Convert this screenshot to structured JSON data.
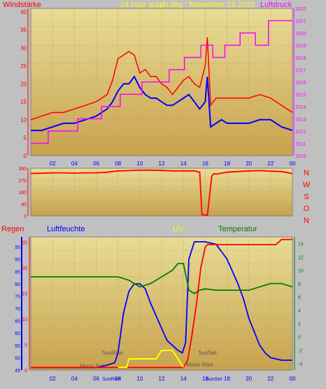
{
  "header": {
    "left_label": "Windstärke",
    "title": "24 hour graph day : November 23 2015",
    "right_label": "Luftdruck"
  },
  "bottom_header": {
    "regen": "Regen",
    "luftfeuchte": "Luftfeuchte",
    "uv": "UV",
    "temperatur": "Temperatur"
  },
  "compass": [
    "N",
    "W",
    "S",
    "O",
    "N"
  ],
  "colors": {
    "wind_gust": "#ff0000",
    "wind_avg": "#0000ff",
    "pressure": "#ff00ff",
    "direction": "#ff0000",
    "humidity": "#0000ff",
    "rain": "#ff0000",
    "temperature": "#008000",
    "uv": "#ffff00",
    "left_axis": "#ff0000",
    "right_axis": "#ff00ff"
  },
  "chart_data": [
    {
      "type": "line",
      "x_ticks": [
        "02",
        "04",
        "06",
        "08",
        "10",
        "12",
        "14",
        "16",
        "18",
        "20",
        "22",
        "00"
      ],
      "y_left_ticks": [
        0,
        5,
        10,
        15,
        20,
        25,
        30,
        35,
        40
      ],
      "y_right_ticks": [
        1010,
        1011,
        1012,
        1013,
        1014,
        1015,
        1016,
        1017,
        1018,
        1019,
        1020,
        1021,
        1022
      ],
      "xlim": [
        0,
        24
      ],
      "ylim_left": [
        0,
        41
      ],
      "ylim_right": [
        1010,
        1022
      ],
      "grid": true,
      "series": [
        {
          "key": "gust",
          "axis": "left",
          "x": [
            0,
            1,
            2,
            3,
            4,
            5,
            6,
            7,
            7.5,
            8,
            8.5,
            9,
            9.5,
            10,
            10.5,
            11,
            11.5,
            12,
            12.5,
            13,
            13.5,
            14,
            14.5,
            15,
            15.5,
            16,
            16.2,
            16.5,
            17,
            17.5,
            18,
            19,
            20,
            21,
            22,
            23,
            24
          ],
          "y": [
            10,
            11,
            12,
            12,
            13,
            14,
            15,
            17,
            21,
            27,
            28,
            29,
            28,
            23,
            24,
            22,
            22,
            20,
            19,
            17,
            19,
            21,
            22,
            20,
            19,
            25,
            33,
            14,
            16,
            16,
            16,
            16,
            16,
            17,
            16,
            14,
            12
          ]
        },
        {
          "key": "avg",
          "axis": "left",
          "x": [
            0,
            1,
            2,
            3,
            4,
            5,
            6,
            7,
            7.5,
            8,
            8.5,
            9,
            9.5,
            10,
            10.5,
            11,
            11.5,
            12,
            12.5,
            13,
            13.5,
            14,
            14.5,
            15,
            15.5,
            16,
            16.2,
            16.5,
            17,
            17.5,
            18,
            19,
            20,
            21,
            22,
            23,
            24
          ],
          "y": [
            7,
            7,
            8,
            9,
            9,
            10,
            11,
            13,
            15,
            18,
            20,
            20,
            22,
            19,
            17,
            16,
            16,
            15,
            14,
            14,
            15,
            16,
            17,
            15,
            13,
            15,
            22,
            8,
            9,
            10,
            9,
            9,
            9,
            10,
            10,
            8,
            7
          ]
        },
        {
          "key": "pressure",
          "axis": "right",
          "x": [
            0,
            1,
            1.6,
            1.6,
            4.3,
            4.3,
            6.5,
            6.5,
            8.2,
            8.2,
            10.2,
            10.2,
            12.7,
            12.7,
            14.1,
            14.1,
            15.6,
            15.6,
            16.7,
            16.7,
            17.8,
            17.8,
            19.2,
            19.2,
            20.6,
            20.6,
            21.8,
            21.8,
            24
          ],
          "y": [
            1011,
            1011,
            1011,
            1012,
            1012,
            1013,
            1013,
            1014,
            1014,
            1015,
            1015,
            1016,
            1016,
            1017,
            1017,
            1018,
            1018,
            1019,
            1019,
            1018,
            1018,
            1019,
            1019,
            1020,
            1020,
            1019,
            1019,
            1021,
            1021
          ]
        }
      ]
    },
    {
      "type": "line",
      "x_ticks": [
        "02",
        "04",
        "06",
        "08",
        "10",
        "12",
        "14",
        "16",
        "18",
        "20",
        "22",
        "00"
      ],
      "y_ticks": [
        0,
        90,
        180,
        270,
        360
      ],
      "ylim": [
        0,
        360
      ],
      "compass_labels": [
        "N",
        "W",
        "S",
        "O",
        "N"
      ],
      "series": [
        {
          "key": "direction",
          "x": [
            0,
            1,
            2,
            3,
            4,
            5,
            6,
            7,
            8,
            9,
            10,
            11,
            12,
            13,
            14,
            15,
            15.5,
            15.7,
            16.2,
            16.6,
            16.8,
            17,
            18,
            19,
            20,
            21,
            22,
            23,
            24
          ],
          "y": [
            320,
            322,
            325,
            325,
            323,
            325,
            325,
            330,
            340,
            342,
            345,
            345,
            343,
            340,
            340,
            340,
            330,
            10,
            5,
            300,
            320,
            315,
            330,
            335,
            340,
            342,
            338,
            335,
            320
          ]
        }
      ]
    },
    {
      "type": "line",
      "x_ticks": [
        "02",
        "04",
        "06",
        "08",
        "10",
        "12",
        "14",
        "16",
        "18",
        "20",
        "22",
        "00"
      ],
      "y_rain_ticks": [
        0,
        5,
        10,
        15,
        20,
        25
      ],
      "y_humidity_ticks": [
        45,
        50,
        55,
        60,
        65,
        70,
        75,
        80,
        85,
        90,
        95
      ],
      "y_temp_ticks": [
        -4,
        -2,
        0,
        2,
        4,
        6,
        8,
        10,
        12,
        14
      ],
      "ylim_rain": [
        0,
        26
      ],
      "ylim_humidity": [
        45,
        99
      ],
      "ylim_temp": [
        -5,
        15
      ],
      "annotations": [
        "SunRise",
        "SunSet",
        "Moon Set",
        "Moon Rise"
      ],
      "x_annotations": [
        "SunRise",
        "SunSet"
      ],
      "series": [
        {
          "key": "humidity",
          "axis": "humidity",
          "x": [
            0,
            6,
            7,
            7.7,
            8,
            8.5,
            9,
            9.5,
            10,
            10.5,
            11,
            11.5,
            12,
            12.5,
            13,
            13.5,
            13.9,
            14.2,
            14.5,
            15,
            16,
            17,
            17.5,
            18,
            18.5,
            19,
            19.5,
            20,
            21,
            21.5,
            22,
            23,
            24
          ],
          "y": [
            46,
            46,
            47,
            48,
            52,
            68,
            77,
            80,
            80,
            78,
            72,
            67,
            62,
            57,
            55,
            53,
            52,
            56,
            90,
            97,
            97,
            96,
            93,
            90,
            85,
            80,
            74,
            66,
            55,
            52,
            50,
            49,
            49
          ]
        },
        {
          "key": "temperature",
          "axis": "temp",
          "x": [
            0,
            2,
            4,
            6,
            8,
            9,
            10,
            11,
            12,
            13,
            13.5,
            14,
            14.5,
            15,
            15.5,
            16,
            17,
            18,
            19,
            20,
            21,
            22,
            23,
            24
          ],
          "y": [
            9,
            9,
            9,
            9,
            9,
            8.5,
            7.5,
            8,
            9,
            10,
            11,
            11,
            7,
            6.5,
            7,
            7.2,
            7,
            7,
            7,
            7,
            7.5,
            8,
            8,
            7.5
          ]
        },
        {
          "key": "rain",
          "axis": "rain",
          "x": [
            0,
            14,
            14.4,
            14.8,
            15.2,
            15.6,
            16,
            16.2,
            17,
            22.5,
            23,
            24
          ],
          "y": [
            0.5,
            0.5,
            2,
            7,
            13,
            20,
            24,
            24.5,
            24.5,
            24.5,
            25.5,
            25.5
          ]
        },
        {
          "key": "uv",
          "axis": "uv",
          "x": [
            8,
            8.8,
            9,
            9.5,
            10,
            10.5,
            11,
            11.5,
            12,
            12.5,
            13,
            13.5,
            14
          ],
          "y": [
            0,
            0,
            1,
            1,
            1,
            1,
            1,
            1,
            2,
            2,
            2,
            1,
            0
          ]
        }
      ]
    }
  ]
}
